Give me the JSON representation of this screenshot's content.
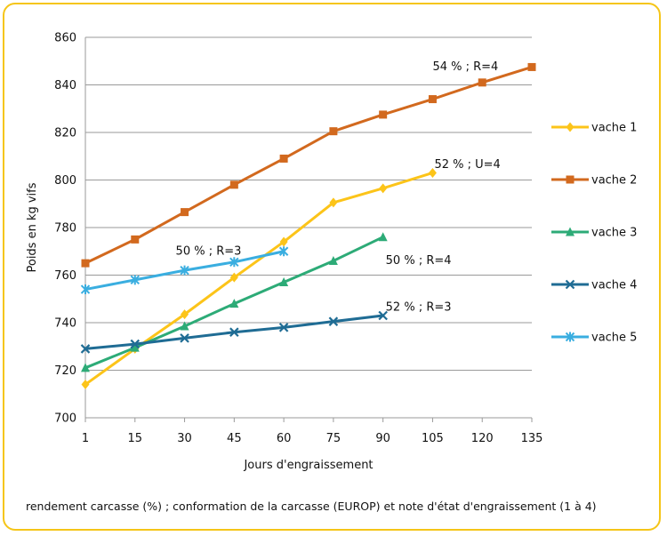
{
  "chart_data": {
    "type": "line",
    "xlabel": "Jours d'engraissement",
    "ylabel": "Poids en kg vifs",
    "x_categories": [
      "1",
      "15",
      "30",
      "45",
      "60",
      "75",
      "90",
      "105",
      "120",
      "135"
    ],
    "ylim": [
      700,
      860
    ],
    "yticks": [
      700,
      720,
      740,
      760,
      780,
      800,
      820,
      840,
      860
    ],
    "grid": "horizontal",
    "legend_position": "right",
    "series": [
      {
        "name": "vache 1",
        "color": "#fcc419",
        "marker": "diamond",
        "values": [
          714,
          729,
          743.5,
          759,
          774,
          790.5,
          796.5,
          803
        ]
      },
      {
        "name": "vache 2",
        "color": "#d2691e",
        "marker": "square",
        "values": [
          765,
          775,
          786.5,
          798,
          809,
          820.5,
          827.5,
          834,
          841,
          847.5
        ]
      },
      {
        "name": "vache 3",
        "color": "#2dab77",
        "marker": "triangle",
        "values": [
          721,
          729.5,
          738.5,
          748,
          757,
          766,
          776
        ]
      },
      {
        "name": "vache 4",
        "color": "#1f6c94",
        "marker": "x",
        "values": [
          729,
          731,
          733.5,
          736,
          738,
          740.5,
          743
        ]
      },
      {
        "name": "vache 5",
        "color": "#3aaee0",
        "marker": "star",
        "values": [
          754,
          758,
          762,
          765.5,
          770
        ]
      }
    ],
    "annotations": [
      {
        "text": "54 % ; R=4",
        "x": "105",
        "y": 848
      },
      {
        "text": "52 % ; U=4",
        "x": "105",
        "y": 807
      },
      {
        "text": "50 % ; R=3",
        "x": "30",
        "y": 770.5
      },
      {
        "text": "50 % ; R=4",
        "x": "90",
        "y": 766.5
      },
      {
        "text": "52 % ; R=3",
        "x": "90",
        "y": 747
      }
    ]
  },
  "footnote": "rendement carcasse (%) ; conformation de la carcasse (EUROP) et note d'état d'engraissement (1 à 4)"
}
